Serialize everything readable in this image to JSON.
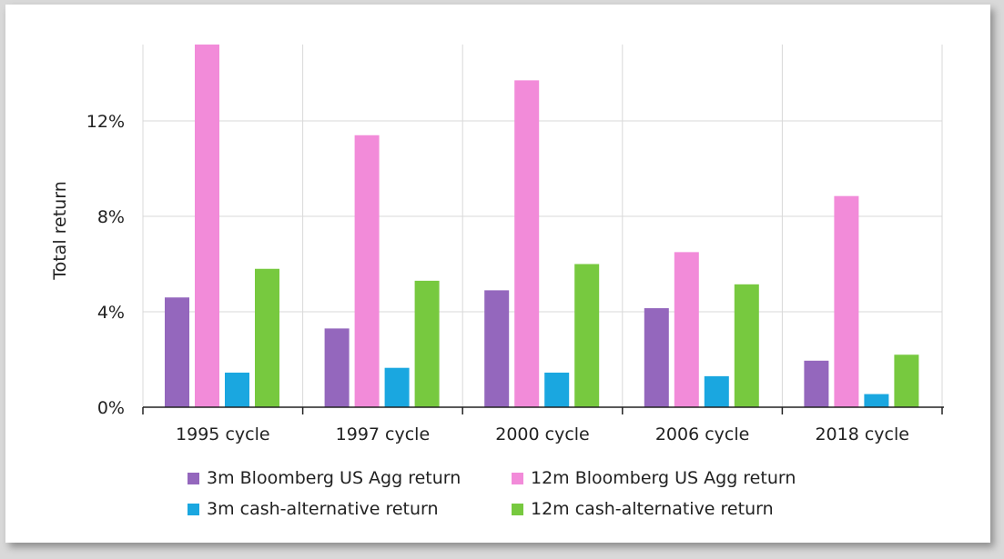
{
  "chart_data": {
    "type": "bar",
    "ylabel": "Total return",
    "xlabel": "",
    "ylim": [
      0,
      15.2
    ],
    "yticks": [
      {
        "value": 0,
        "label": "0%"
      },
      {
        "value": 4,
        "label": "4%"
      },
      {
        "value": 8,
        "label": "8%"
      },
      {
        "value": 12,
        "label": "12%"
      }
    ],
    "grid": true,
    "legend_position": "bottom",
    "categories": [
      "1995 cycle",
      "1997 cycle",
      "2000 cycle",
      "2006 cycle",
      "2018 cycle"
    ],
    "series": [
      {
        "name": "3m Bloomberg US Agg return",
        "color": "#9467bd",
        "values": [
          4.6,
          3.3,
          4.9,
          4.15,
          1.95
        ]
      },
      {
        "name": "12m Bloomberg US Agg return",
        "color": "#f28bd9",
        "values": [
          15.2,
          11.4,
          13.7,
          6.5,
          8.85
        ]
      },
      {
        "name": "3m cash-alternative return",
        "color": "#1aa7e0",
        "values": [
          1.45,
          1.65,
          1.45,
          1.3,
          0.55
        ]
      },
      {
        "name": "12m cash-alternative return",
        "color": "#77c93f",
        "values": [
          5.8,
          5.3,
          6.0,
          5.15,
          2.2
        ]
      }
    ]
  }
}
